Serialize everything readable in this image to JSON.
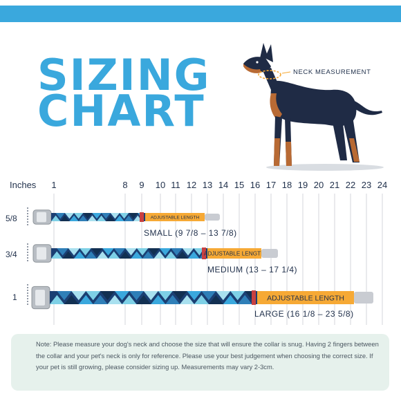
{
  "title": {
    "line1": "SIZING",
    "line2": "CHART"
  },
  "neck_label": "NECK MEASUREMENT",
  "ruler": {
    "unit_label": "Inches",
    "ticks": [
      "1",
      "8",
      "9",
      "10",
      "11",
      "12",
      "13",
      "14",
      "15",
      "16",
      "17",
      "18",
      "19",
      "20",
      "21",
      "22",
      "23",
      "24"
    ]
  },
  "collars": [
    {
      "width_label": "5/8",
      "size_text": "SMALL (9 7/8 – 13 7/8)",
      "adjustable_text": "ADJUSTABLE LENGTH"
    },
    {
      "width_label": "3/4",
      "size_text": "MEDIUM (13 – 17 1/4)",
      "adjustable_text": "ADJUSTABLE LENGTH"
    },
    {
      "width_label": "1",
      "size_text": "LARGE (16 1/8 – 23 5/8)",
      "adjustable_text": "ADJUSTABLE LENGTH"
    }
  ],
  "note": "Note: Please measure your dog's neck and choose the size that will ensure the collar is snug. Having 2 fingers between the collar and your pet's neck is only for reference. Please use your best judgement when choosing the correct size. If your pet is still growing, please consider sizing up. Measurements may vary 2-3cm.",
  "colors": {
    "accent": "#3aa8dd",
    "text": "#1f2f4a",
    "band": "#f6a935",
    "note_bg": "#e6f1ec"
  }
}
